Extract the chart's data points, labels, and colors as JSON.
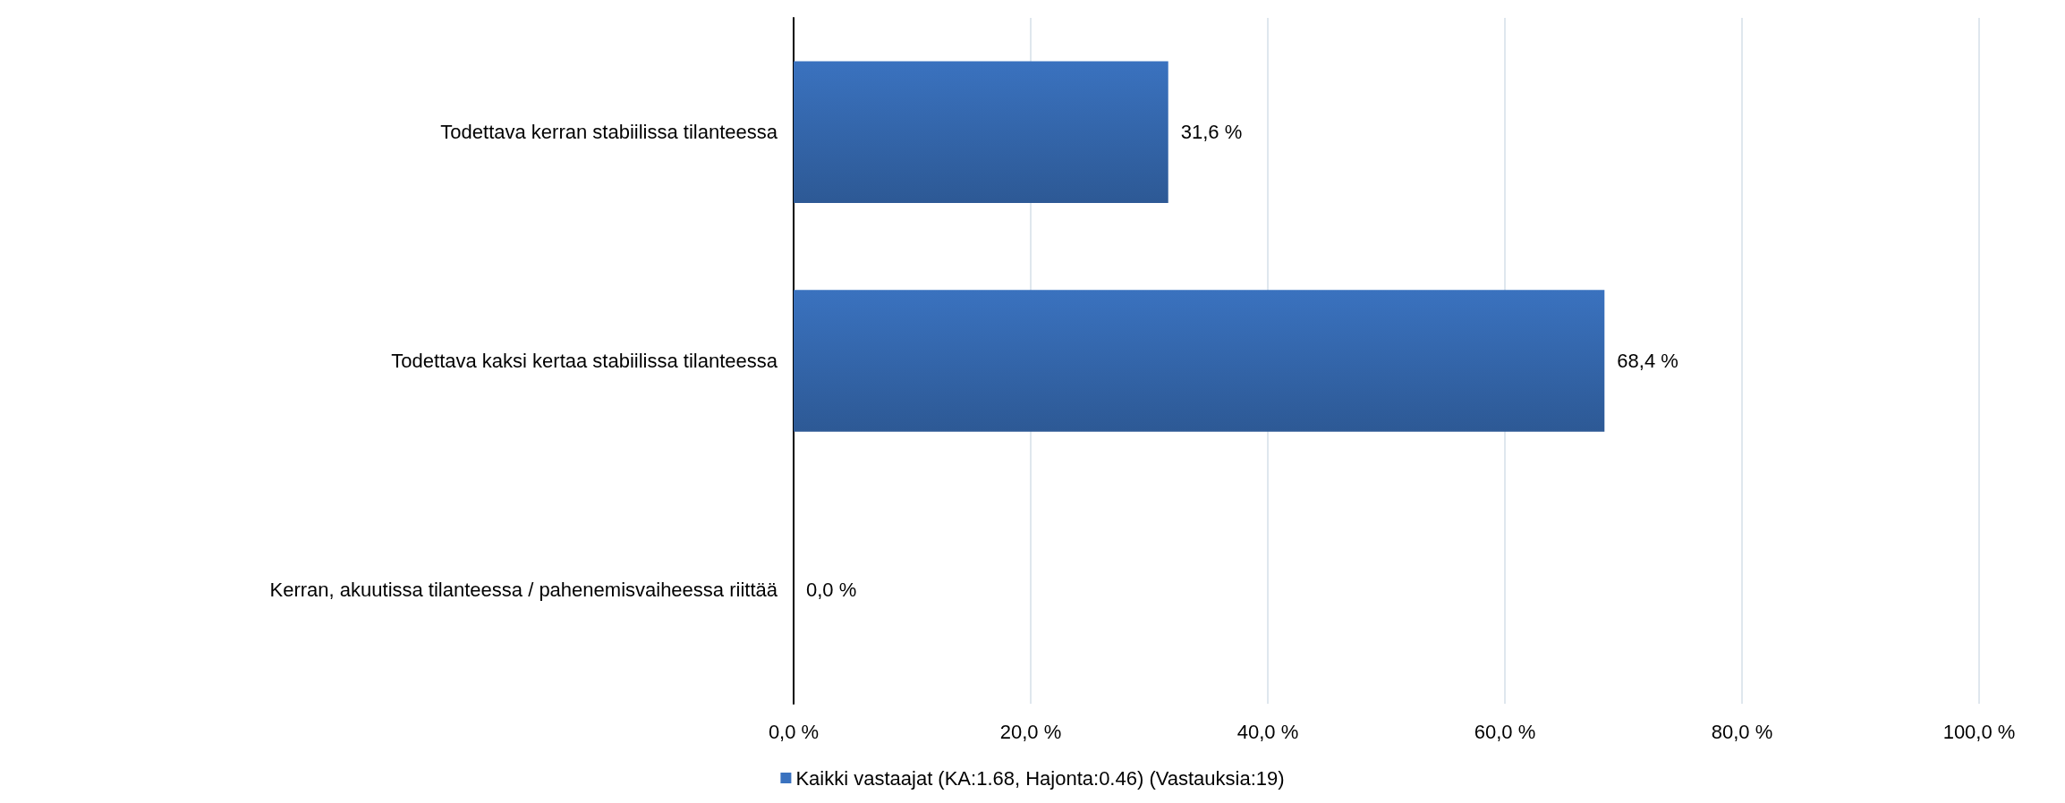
{
  "chart_data": {
    "type": "bar",
    "orientation": "horizontal",
    "categories": [
      "Todettava kerran stabiilissa tilanteessa",
      "Todettava kaksi kertaa stabiilissa tilanteessa",
      "Kerran, akuutissa tilanteessa / pahenemisvaiheessa riittää"
    ],
    "series": [
      {
        "name": "Kaikki vastaajat (KA:1.68, Hajonta:0.46) (Vastauksia:19)",
        "color": "#3a72bf",
        "values": [
          31.6,
          68.4,
          0.0
        ],
        "value_labels": [
          "31,6 %",
          "68,4 %",
          "0,0 %"
        ]
      }
    ],
    "xlim": [
      0,
      100
    ],
    "xticks": [
      {
        "value": 0,
        "label": "0,0 %"
      },
      {
        "value": 20,
        "label": "20,0 %"
      },
      {
        "value": 40,
        "label": "40,0 %"
      },
      {
        "value": 60,
        "label": "60,0 %"
      },
      {
        "value": 80,
        "label": "80,0 %"
      },
      {
        "value": 100,
        "label": "100,0 %"
      }
    ],
    "grid": "x",
    "legend": "bottom"
  }
}
